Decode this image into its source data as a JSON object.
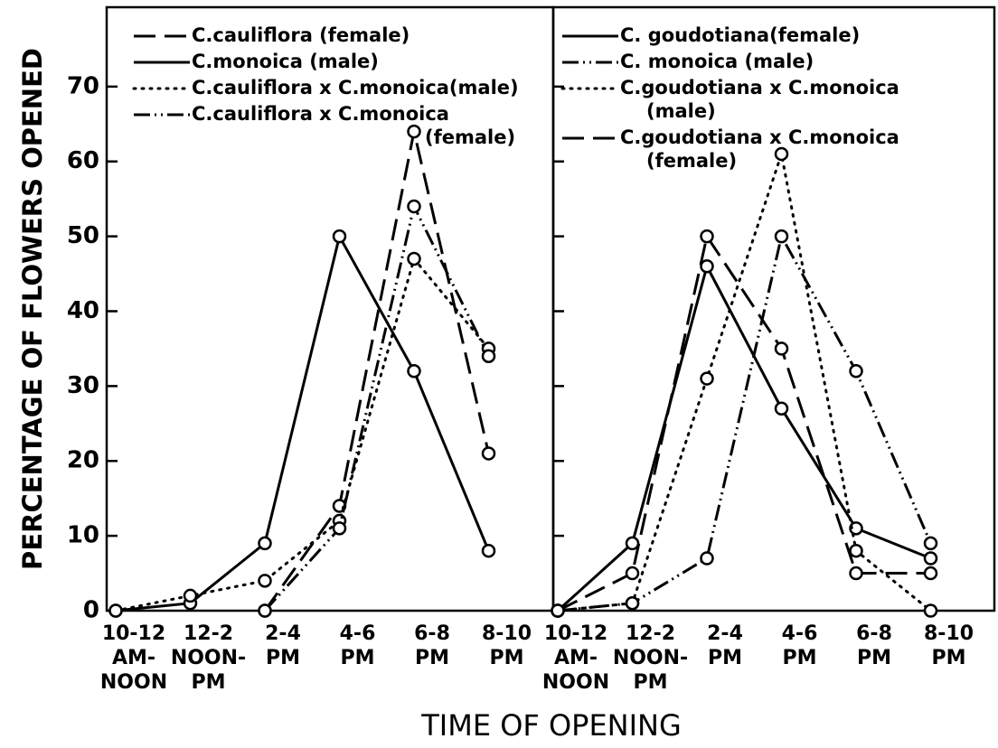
{
  "ylabel": "PERCENTAGE OF FLOWERS OPENED",
  "xlabel": "TIME OF OPENING",
  "chart_data": [
    {
      "type": "line",
      "categories": [
        "10-12\nAM-\nNOON",
        "12-2\nNOON-\nPM",
        "2-4\nPM",
        "4-6\nPM",
        "6-8\nPM",
        "8-10\nPM"
      ],
      "ylim": [
        0,
        80.6
      ],
      "yticks": [
        0,
        10,
        20,
        30,
        40,
        50,
        60,
        70
      ],
      "tick_labels": true,
      "markers": true,
      "series": [
        {
          "name": "C.cauliflora (female)",
          "color": "#000000",
          "dash": "dashed",
          "values": [
            null,
            null,
            0,
            14,
            64,
            21
          ]
        },
        {
          "name": "C.monoica (male)",
          "color": "#000000",
          "dash": "solid",
          "values": [
            0,
            1,
            9,
            50,
            32,
            8
          ]
        },
        {
          "name": "C.cauliflora x C.monoica(male)",
          "color": "#000000",
          "dash": "dotted",
          "values": [
            0,
            2,
            4,
            12,
            47,
            35
          ]
        },
        {
          "name": "C.cauliflora x C.monoica\n(female)",
          "color": "#000000",
          "dash": "dashdotdot",
          "values": [
            null,
            null,
            0,
            11,
            54,
            34
          ]
        }
      ]
    },
    {
      "type": "line",
      "categories": [
        "10-12\nAM-\nNOON",
        "12-2\nNOON-\nPM",
        "2-4\nPM",
        "4-6\nPM",
        "6-8\nPM",
        "8-10\nPM"
      ],
      "ylim": [
        0,
        80.6
      ],
      "yticks": [
        0,
        10,
        20,
        30,
        40,
        50,
        60,
        70
      ],
      "tick_labels": false,
      "markers": true,
      "series": [
        {
          "name": "C. goudotiana(female)",
          "color": "#000000",
          "dash": "solid",
          "values": [
            0,
            9,
            46,
            27,
            11,
            7
          ]
        },
        {
          "name": "C. monoica (male)",
          "color": "#000000",
          "dash": "dashdotdot",
          "values": [
            0,
            1,
            7,
            50,
            32,
            9
          ]
        },
        {
          "name": "C.goudotiana x C.monoica\n(male)",
          "color": "#000000",
          "dash": "dotted",
          "values": [
            0,
            1,
            31,
            61,
            8,
            0
          ]
        },
        {
          "name": "C.goudotiana x C.monoica\n(female)",
          "color": "#000000",
          "dash": "dashed",
          "values": [
            0,
            5,
            50,
            35,
            5,
            5
          ]
        }
      ]
    }
  ]
}
